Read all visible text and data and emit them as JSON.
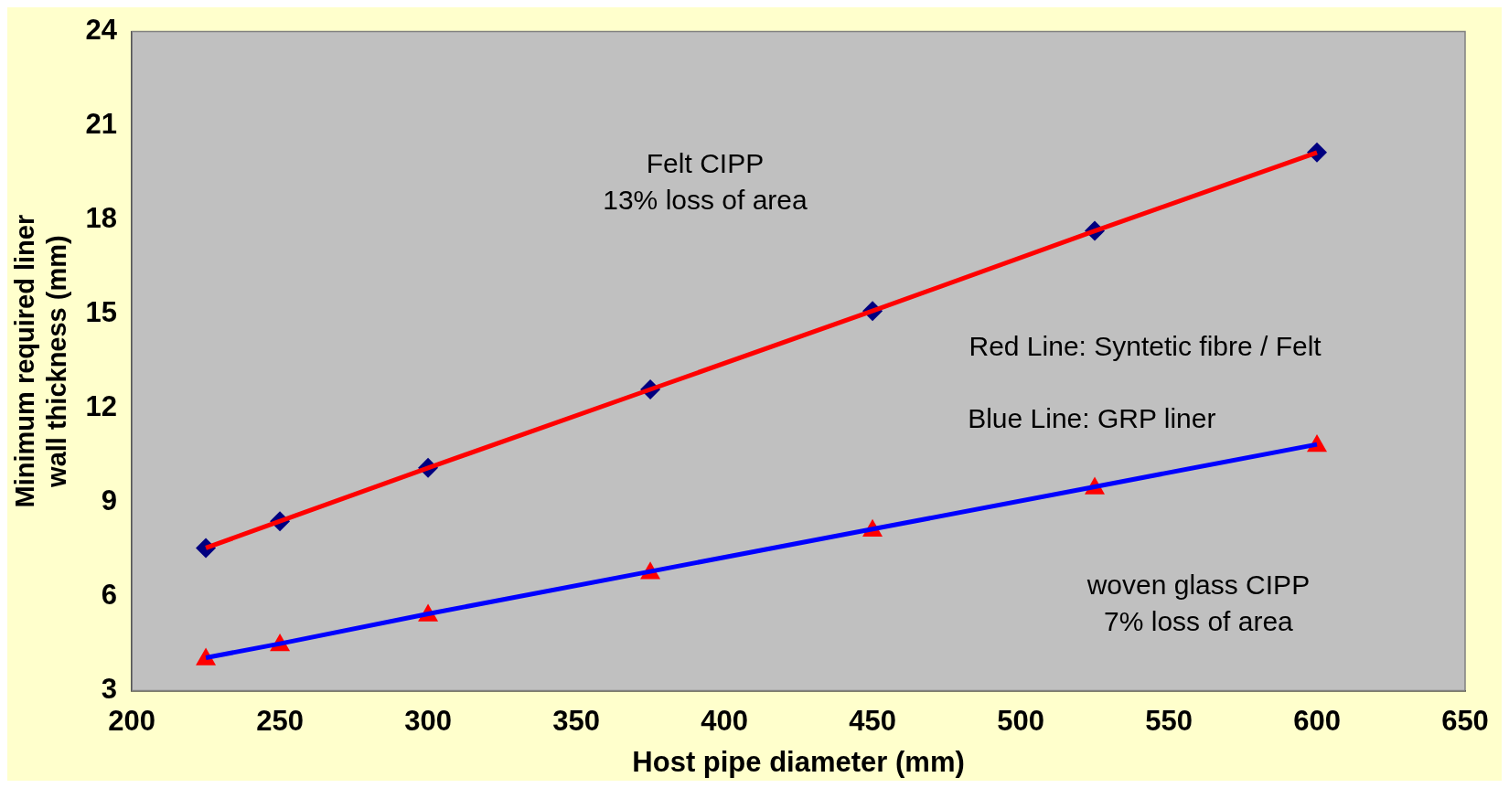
{
  "chart_data": {
    "type": "line",
    "xlabel": "Host pipe diameter (mm)",
    "ylabel": "Minimum required liner\nwall thickness (mm)",
    "x": [
      225,
      250,
      300,
      375,
      450,
      525,
      600
    ],
    "series": [
      {
        "color": "#ff0000",
        "marker": "diamond",
        "values": [
          7.55,
          8.4,
          10.1,
          12.6,
          15.1,
          17.65,
          20.15
        ]
      },
      {
        "color": "#0000ff",
        "marker": "triangle",
        "values": [
          4.05,
          4.5,
          5.45,
          6.8,
          8.15,
          9.5,
          10.85
        ]
      }
    ],
    "xlim": [
      200,
      650
    ],
    "xticks": [
      200,
      250,
      300,
      350,
      400,
      450,
      500,
      550,
      600,
      650
    ],
    "ylim": [
      3,
      24
    ],
    "yticks": [
      3,
      6,
      9,
      12,
      15,
      18,
      21,
      24
    ],
    "grid": false,
    "legend": false,
    "annotations": [
      "Felt CIPP\n13% loss of area",
      "Red Line: Syntetic fibre / Felt",
      "Blue Line: GRP liner",
      "woven glass CIPP\n7% loss of area"
    ]
  }
}
